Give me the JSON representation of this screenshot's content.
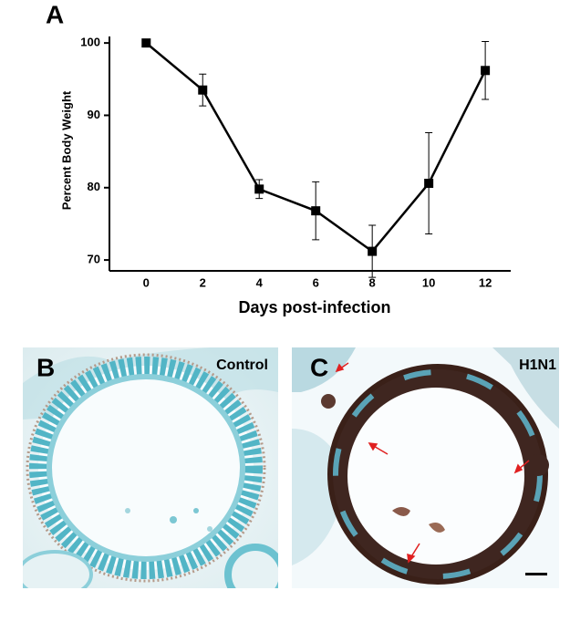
{
  "chart_data": {
    "type": "line",
    "panel_label": "A",
    "xlabel": "Days post-infection",
    "ylabel": "Percent Body Weight",
    "x": [
      0,
      2,
      4,
      6,
      8,
      10,
      12
    ],
    "values": [
      100,
      93.5,
      79.8,
      76.8,
      71.2,
      80.6,
      96.2
    ],
    "errors": [
      0,
      2.2,
      1.3,
      4,
      3.6,
      7,
      4
    ],
    "color": "#000000",
    "xlim": [
      -1.3,
      12.9
    ],
    "xticks": [
      0,
      2,
      4,
      6,
      8,
      10,
      12
    ],
    "ylim": [
      68.5,
      100.9
    ],
    "yticks": [
      70,
      80,
      90,
      100
    ]
  },
  "panels": [
    {
      "label": "B",
      "caption": "Control"
    },
    {
      "label": "C",
      "caption": "H1N1"
    }
  ]
}
